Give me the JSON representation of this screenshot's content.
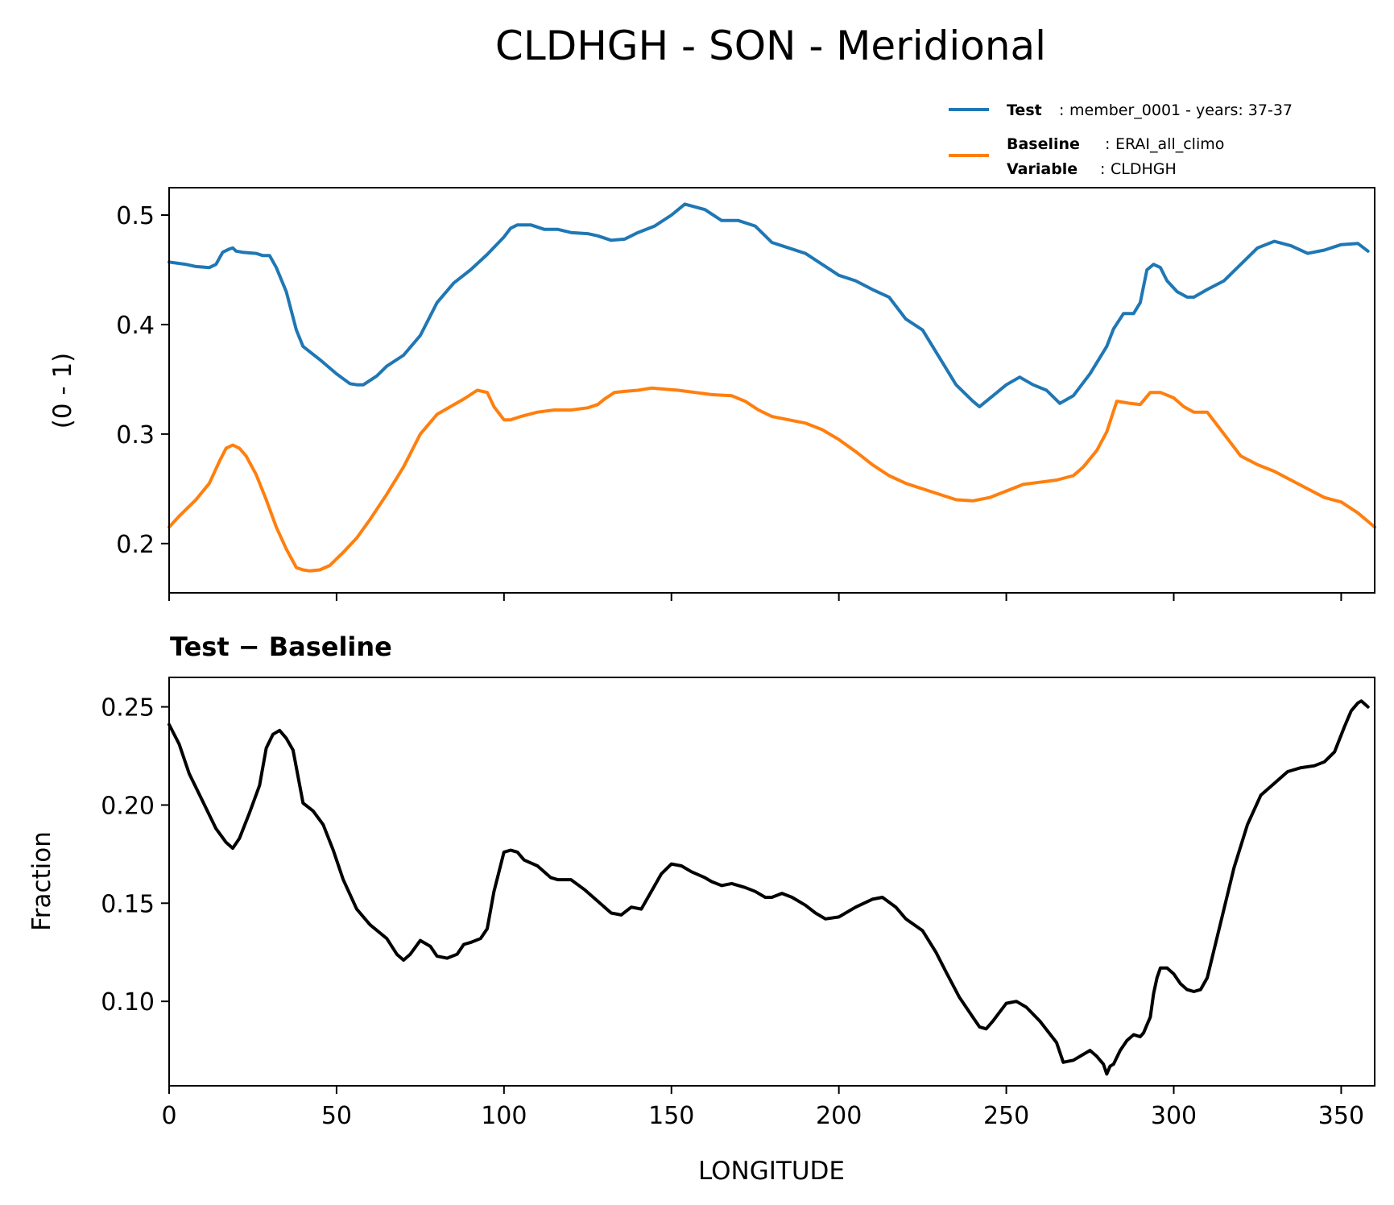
{
  "figure": {
    "title": "CLDHGH - SON - Meridional"
  },
  "legend": {
    "test_key": "Test",
    "test_value": "member_0001 - years: 37-37",
    "baseline_key": "Baseline",
    "baseline_value": "ERAI_all_climo",
    "variable_key": "Variable",
    "variable_value": "CLDHGH",
    "separator": ":"
  },
  "colors": {
    "test": "#1f77b4",
    "baseline": "#ff7f0e",
    "diff": "#000000"
  },
  "chart_data": [
    {
      "type": "line",
      "title": "",
      "xlabel": "",
      "ylabel": "(0 - 1)",
      "xlim": [
        0,
        360
      ],
      "ylim": [
        0.155,
        0.525
      ],
      "yticks": [
        0.2,
        0.3,
        0.4,
        0.5
      ],
      "ytick_labels": [
        "0.2",
        "0.3",
        "0.4",
        "0.5"
      ],
      "xticks": [
        0,
        50,
        100,
        150,
        200,
        250,
        300,
        350
      ],
      "series": [
        {
          "name": "Test",
          "x": [
            0,
            5,
            8,
            12,
            14,
            16,
            18,
            19,
            20,
            22,
            26,
            28,
            30,
            32,
            35,
            38,
            40,
            45,
            50,
            54,
            56,
            58,
            62,
            65,
            70,
            75,
            80,
            85,
            90,
            95,
            100,
            102,
            104,
            108,
            112,
            116,
            120,
            125,
            128,
            132,
            136,
            140,
            145,
            150,
            154,
            160,
            165,
            170,
            175,
            180,
            185,
            190,
            195,
            200,
            205,
            210,
            215,
            220,
            225,
            230,
            235,
            240,
            242,
            246,
            250,
            254,
            258,
            262,
            266,
            270,
            275,
            280,
            282,
            285,
            288,
            290,
            292,
            294,
            296,
            298,
            301,
            304,
            306,
            310,
            315,
            320,
            325,
            330,
            335,
            340,
            345,
            350,
            355,
            358
          ],
          "values": [
            0.457,
            0.455,
            0.453,
            0.452,
            0.455,
            0.466,
            0.469,
            0.47,
            0.467,
            0.466,
            0.465,
            0.463,
            0.463,
            0.452,
            0.43,
            0.395,
            0.38,
            0.368,
            0.355,
            0.346,
            0.345,
            0.345,
            0.353,
            0.362,
            0.372,
            0.39,
            0.42,
            0.438,
            0.45,
            0.464,
            0.48,
            0.488,
            0.491,
            0.491,
            0.487,
            0.487,
            0.484,
            0.483,
            0.481,
            0.477,
            0.478,
            0.484,
            0.49,
            0.5,
            0.51,
            0.505,
            0.495,
            0.495,
            0.49,
            0.475,
            0.47,
            0.465,
            0.455,
            0.445,
            0.44,
            0.432,
            0.425,
            0.405,
            0.395,
            0.37,
            0.345,
            0.33,
            0.325,
            0.335,
            0.345,
            0.352,
            0.345,
            0.34,
            0.328,
            0.335,
            0.355,
            0.38,
            0.396,
            0.41,
            0.41,
            0.42,
            0.45,
            0.455,
            0.452,
            0.44,
            0.43,
            0.425,
            0.425,
            0.432,
            0.44,
            0.455,
            0.47,
            0.476,
            0.472,
            0.465,
            0.468,
            0.473,
            0.474,
            0.467
          ]
        },
        {
          "name": "Baseline",
          "x": [
            0,
            3,
            8,
            12,
            15,
            17,
            19,
            21,
            23,
            26,
            29,
            32,
            35,
            38,
            40,
            42,
            45,
            48,
            52,
            56,
            60,
            65,
            70,
            75,
            80,
            84,
            88,
            92,
            95,
            97,
            100,
            102,
            105,
            110,
            115,
            120,
            125,
            128,
            130,
            133,
            136,
            140,
            144,
            148,
            152,
            157,
            162,
            168,
            172,
            176,
            180,
            185,
            190,
            195,
            200,
            205,
            210,
            215,
            220,
            225,
            230,
            235,
            240,
            245,
            250,
            255,
            260,
            265,
            270,
            273,
            277,
            280,
            283,
            287,
            290,
            293,
            296,
            300,
            303,
            306,
            310,
            315,
            320,
            325,
            330,
            335,
            340,
            345,
            350,
            355,
            360
          ],
          "values": [
            0.215,
            0.225,
            0.24,
            0.255,
            0.275,
            0.287,
            0.29,
            0.287,
            0.28,
            0.263,
            0.24,
            0.215,
            0.195,
            0.178,
            0.176,
            0.175,
            0.176,
            0.18,
            0.192,
            0.205,
            0.222,
            0.245,
            0.27,
            0.3,
            0.318,
            0.325,
            0.332,
            0.34,
            0.338,
            0.325,
            0.313,
            0.313,
            0.316,
            0.32,
            0.322,
            0.322,
            0.324,
            0.327,
            0.332,
            0.338,
            0.339,
            0.34,
            0.342,
            0.341,
            0.34,
            0.338,
            0.336,
            0.335,
            0.33,
            0.322,
            0.316,
            0.313,
            0.31,
            0.304,
            0.295,
            0.284,
            0.272,
            0.262,
            0.255,
            0.25,
            0.245,
            0.24,
            0.239,
            0.242,
            0.248,
            0.254,
            0.256,
            0.258,
            0.262,
            0.27,
            0.285,
            0.302,
            0.33,
            0.328,
            0.327,
            0.338,
            0.338,
            0.333,
            0.325,
            0.32,
            0.32,
            0.3,
            0.28,
            0.272,
            0.266,
            0.258,
            0.25,
            0.242,
            0.238,
            0.228,
            0.215
          ]
        }
      ]
    },
    {
      "type": "line",
      "title": "Test − Baseline",
      "xlabel": "LONGITUDE",
      "ylabel": "Fraction",
      "xlim": [
        0,
        360
      ],
      "ylim": [
        0.057,
        0.265
      ],
      "yticks": [
        0.1,
        0.15,
        0.2,
        0.25
      ],
      "ytick_labels": [
        "0.10",
        "0.15",
        "0.20",
        "0.25"
      ],
      "xticks": [
        0,
        50,
        100,
        150,
        200,
        250,
        300,
        350
      ],
      "xtick_labels": [
        "0",
        "50",
        "100",
        "150",
        "200",
        "250",
        "300",
        "350"
      ],
      "series": [
        {
          "name": "Test − Baseline",
          "x": [
            0,
            3,
            6,
            10,
            14,
            17,
            19,
            21,
            24,
            27,
            29,
            31,
            33,
            35,
            37,
            40,
            43,
            46,
            49,
            52,
            56,
            60,
            65,
            68,
            70,
            72,
            75,
            78,
            80,
            83,
            86,
            88,
            90,
            93,
            95,
            97,
            100,
            102,
            104,
            106,
            110,
            114,
            116,
            120,
            124,
            128,
            132,
            135,
            138,
            141,
            144,
            147,
            150,
            153,
            156,
            160,
            162,
            165,
            168,
            172,
            175,
            178,
            180,
            183,
            186,
            190,
            193,
            196,
            200,
            205,
            210,
            213,
            217,
            220,
            225,
            229,
            232,
            236,
            240,
            242,
            244,
            246,
            250,
            253,
            256,
            260,
            265,
            267,
            270,
            273,
            275,
            277,
            279,
            280,
            281,
            282,
            284,
            286,
            288,
            290,
            291,
            292,
            293,
            294,
            295,
            296,
            298,
            300,
            302,
            304,
            306,
            308,
            310,
            314,
            318,
            322,
            326,
            330,
            334,
            338,
            342,
            345,
            348,
            351,
            353,
            355,
            356,
            358
          ],
          "values": [
            0.241,
            0.231,
            0.216,
            0.202,
            0.188,
            0.181,
            0.178,
            0.183,
            0.196,
            0.21,
            0.229,
            0.236,
            0.238,
            0.234,
            0.228,
            0.201,
            0.197,
            0.19,
            0.177,
            0.162,
            0.147,
            0.139,
            0.132,
            0.124,
            0.121,
            0.124,
            0.131,
            0.128,
            0.123,
            0.122,
            0.124,
            0.129,
            0.13,
            0.132,
            0.137,
            0.156,
            0.176,
            0.177,
            0.176,
            0.172,
            0.169,
            0.163,
            0.162,
            0.162,
            0.157,
            0.151,
            0.145,
            0.144,
            0.148,
            0.147,
            0.156,
            0.165,
            0.17,
            0.169,
            0.166,
            0.163,
            0.161,
            0.159,
            0.16,
            0.158,
            0.156,
            0.153,
            0.153,
            0.155,
            0.153,
            0.149,
            0.145,
            0.142,
            0.143,
            0.148,
            0.152,
            0.153,
            0.148,
            0.142,
            0.136,
            0.125,
            0.115,
            0.102,
            0.092,
            0.087,
            0.086,
            0.09,
            0.099,
            0.1,
            0.097,
            0.09,
            0.079,
            0.069,
            0.07,
            0.073,
            0.075,
            0.072,
            0.068,
            0.063,
            0.067,
            0.068,
            0.075,
            0.08,
            0.083,
            0.082,
            0.084,
            0.088,
            0.092,
            0.104,
            0.112,
            0.117,
            0.117,
            0.114,
            0.109,
            0.106,
            0.105,
            0.106,
            0.112,
            0.14,
            0.168,
            0.19,
            0.205,
            0.211,
            0.217,
            0.219,
            0.22,
            0.222,
            0.227,
            0.24,
            0.248,
            0.252,
            0.253,
            0.25
          ]
        }
      ]
    }
  ]
}
